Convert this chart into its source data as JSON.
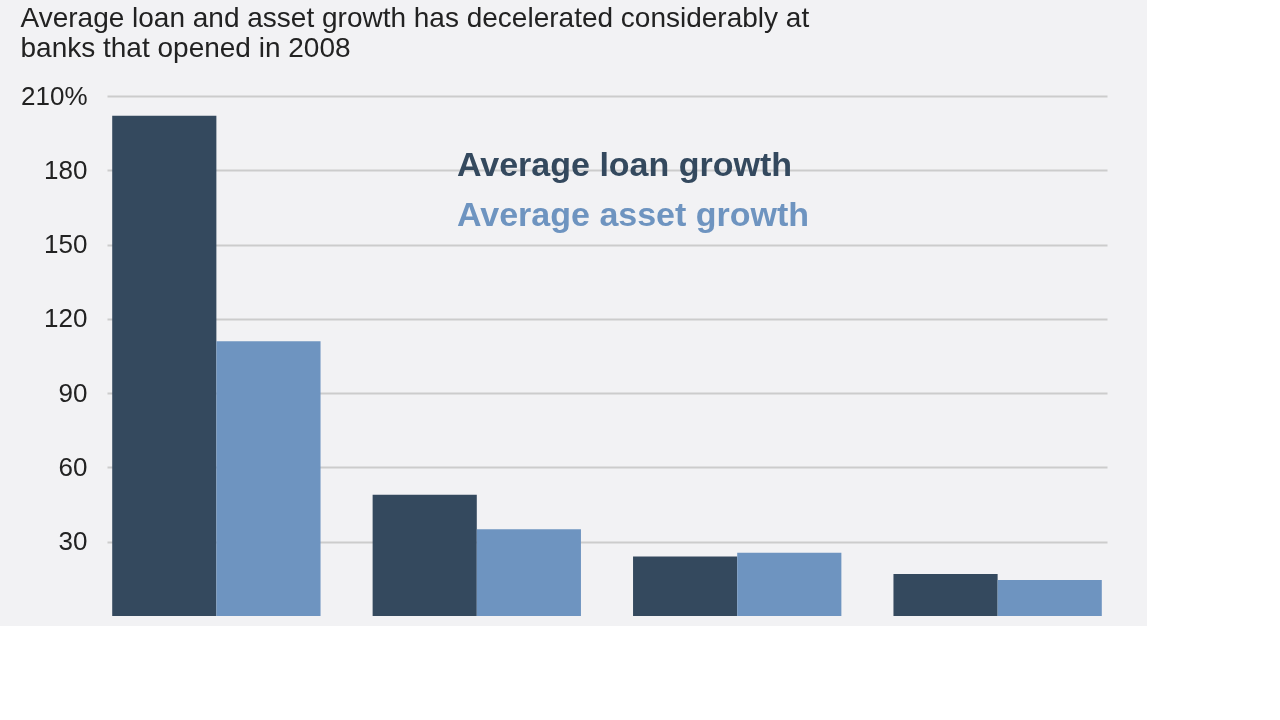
{
  "chart_data": {
    "type": "bar",
    "title": [
      "Average loan and asset growth has decelerated considerably at",
      "banks that opened in 2008"
    ],
    "categories": [
      null,
      null,
      null,
      null
    ],
    "series": [
      {
        "name": "Average loan growth",
        "color": "#34495e",
        "values": [
          202,
          49,
          24,
          17
        ]
      },
      {
        "name": "Average asset growth",
        "color": "#6e94c0",
        "values": [
          111,
          35,
          25.5,
          14.5
        ]
      }
    ],
    "ylim": [
      0,
      210
    ],
    "yticks": [
      30,
      60,
      90,
      120,
      150,
      180,
      {
        "value": 210,
        "label": "210%"
      }
    ],
    "grid": "y",
    "legend": "top right"
  }
}
